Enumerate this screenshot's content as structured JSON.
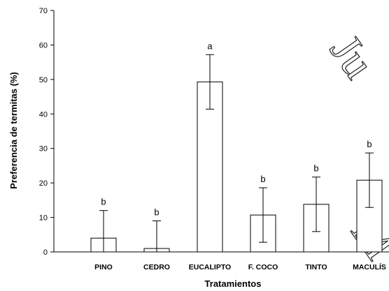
{
  "chart_data": {
    "type": "bar",
    "title": "",
    "xlabel": "Tratamientos",
    "ylabel": "Preferencia de termitas (%)",
    "ylim": [
      0,
      70
    ],
    "yticks": [
      "0",
      "10",
      "20",
      "30",
      "40",
      "50",
      "60",
      "70"
    ],
    "categories": [
      "PINO",
      "CEDRO",
      "EUCALIPTO",
      "F. COCO",
      "TINTO",
      "MACULÍS"
    ],
    "values": [
      4,
      1,
      49.3,
      10.7,
      13.8,
      20.8
    ],
    "error": [
      8,
      8,
      7.9,
      7.9,
      7.9,
      7.9
    ],
    "letters": [
      "b",
      "b",
      "a",
      "b",
      "b",
      "b"
    ],
    "grid": false,
    "legend": "none",
    "bar_fill": "#ffffff",
    "bar_stroke": "#000000"
  },
  "watermark": {
    "text": "Ju   M",
    "color": "#222222"
  }
}
